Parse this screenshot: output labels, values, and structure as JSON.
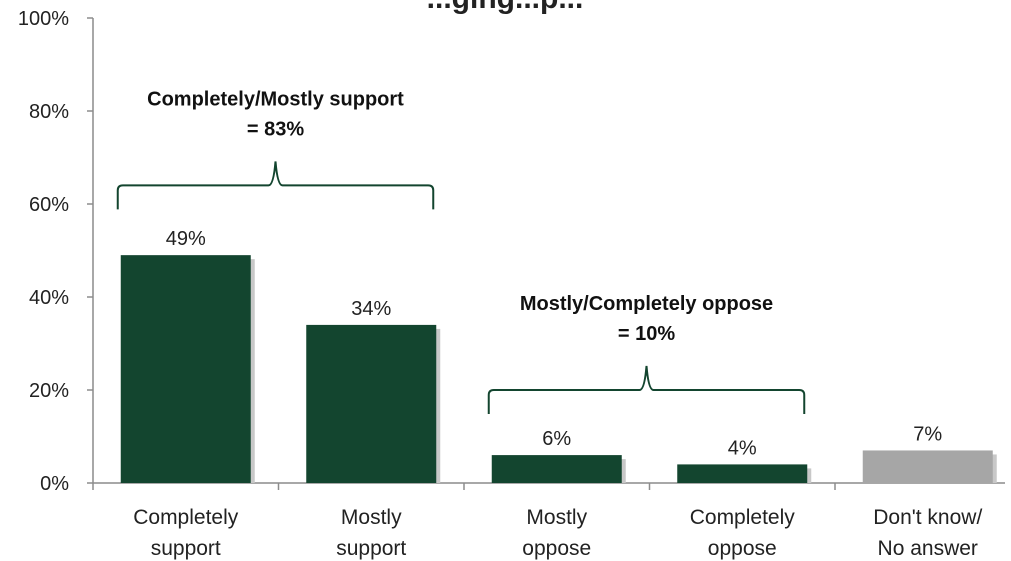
{
  "chart_data": {
    "type": "bar",
    "title": "...ging...p...",
    "categories": [
      [
        "Completely",
        "support"
      ],
      [
        "Mostly",
        "support"
      ],
      [
        "Mostly",
        "oppose"
      ],
      [
        "Completely",
        "oppose"
      ],
      [
        "Don't know/",
        "No answer"
      ]
    ],
    "values": [
      49,
      34,
      6,
      4,
      7
    ],
    "data_labels": [
      "49%",
      "34%",
      "6%",
      "4%",
      "7%"
    ],
    "bar_colors": [
      "#13452f",
      "#13452f",
      "#13452f",
      "#13452f",
      "#a6a6a6"
    ],
    "ylim": [
      0,
      100
    ],
    "yticks": [
      0,
      20,
      40,
      60,
      80,
      100
    ],
    "ytick_labels": [
      "0%",
      "20%",
      "40%",
      "60%",
      "80%",
      "100%"
    ],
    "grid": false,
    "annotations": [
      {
        "lines": [
          "Completely/Mostly support",
          "= 83%"
        ],
        "span": [
          0,
          1
        ],
        "bracket_value": 64,
        "bracket_color": "#13452f"
      },
      {
        "lines": [
          "Mostly/Completely oppose",
          "= 10%"
        ],
        "span": [
          2,
          3
        ],
        "bracket_value": 20,
        "bracket_color": "#13452f"
      }
    ]
  }
}
